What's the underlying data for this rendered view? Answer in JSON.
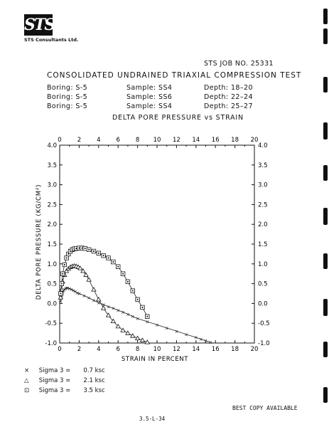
{
  "logo_text": "STS",
  "company": "STS Consultants Ltd.",
  "job": "STS JOB NO. 25331",
  "test_title": "CONSOLIDATED UNDRAINED TRIAXIAL COMPRESSION TEST",
  "samples": [
    {
      "boring": "Boring: S-5",
      "sample": "Sample: SS4",
      "depth": "Depth:  18–20"
    },
    {
      "boring": "Boring: S-5",
      "sample": "Sample: SS6",
      "depth": "Depth:  22–24"
    },
    {
      "boring": "Boring: S-5",
      "sample": "Sample: SS4",
      "depth": "Depth:  25–27"
    }
  ],
  "chart_data": {
    "type": "scatter",
    "title": "DELTA PORE PRESSURE vs STRAIN",
    "xlabel": "STRAIN IN PERCENT",
    "ylabel": "DELTA PORE PRESSURE  (KG/CM²)",
    "xlim": [
      0,
      20
    ],
    "ylim": [
      -1.0,
      4.0
    ],
    "x_ticks": [
      "0",
      "2",
      "4",
      "6",
      "8",
      "10",
      "12",
      "14",
      "16",
      "18",
      "20"
    ],
    "y_ticks": [
      "4.0",
      "3.5",
      "3.0",
      "2.5",
      "2.0",
      "1.5",
      "1.0",
      "0.5",
      "0.0",
      "-0.5",
      "-1.0"
    ],
    "series": [
      {
        "marker": "x",
        "x": [
          0.1,
          0.2,
          0.3,
          0.4,
          0.5,
          0.6,
          0.7,
          0.8,
          1.0,
          1.2,
          1.4,
          1.6,
          1.8,
          2.0,
          2.5,
          3.0,
          3.5,
          4.0,
          4.5,
          5.0,
          5.5,
          6.0,
          6.5,
          7.0,
          7.5,
          8.0,
          9.0,
          10.0,
          11.0,
          12.0,
          13.0,
          14.0,
          14.5,
          15.0,
          15.5
        ],
        "y": [
          0.05,
          0.15,
          0.25,
          0.32,
          0.36,
          0.38,
          0.39,
          0.39,
          0.38,
          0.36,
          0.33,
          0.3,
          0.27,
          0.25,
          0.2,
          0.14,
          0.08,
          0.02,
          -0.03,
          -0.08,
          -0.12,
          -0.17,
          -0.22,
          -0.27,
          -0.33,
          -0.38,
          -0.46,
          -0.54,
          -0.62,
          -0.7,
          -0.78,
          -0.86,
          -0.9,
          -0.94,
          -0.98
        ]
      },
      {
        "marker": "triangle",
        "x": [
          0.1,
          0.2,
          0.3,
          0.5,
          0.7,
          0.9,
          1.1,
          1.3,
          1.5,
          1.7,
          1.9,
          2.1,
          2.4,
          2.7,
          3.0,
          3.5,
          4.0,
          4.5,
          5.0,
          5.5,
          6.0,
          6.5,
          7.0,
          7.5,
          8.0,
          8.5,
          9.0
        ],
        "y": [
          0.15,
          0.35,
          0.55,
          0.72,
          0.82,
          0.88,
          0.92,
          0.94,
          0.95,
          0.94,
          0.92,
          0.89,
          0.82,
          0.72,
          0.6,
          0.35,
          0.1,
          -0.12,
          -0.3,
          -0.45,
          -0.58,
          -0.68,
          -0.75,
          -0.82,
          -0.88,
          -0.93,
          -0.98
        ]
      },
      {
        "marker": "square",
        "x": [
          0.1,
          0.2,
          0.3,
          0.5,
          0.7,
          0.9,
          1.1,
          1.3,
          1.5,
          1.7,
          2.0,
          2.3,
          2.6,
          3.0,
          3.5,
          4.0,
          4.5,
          5.0,
          5.5,
          6.0,
          6.5,
          7.0,
          7.5,
          8.0,
          8.5,
          9.0
        ],
        "y": [
          0.25,
          0.5,
          0.75,
          0.98,
          1.15,
          1.25,
          1.32,
          1.36,
          1.38,
          1.39,
          1.4,
          1.4,
          1.39,
          1.36,
          1.32,
          1.27,
          1.21,
          1.15,
          1.05,
          0.93,
          0.75,
          0.55,
          0.32,
          0.1,
          -0.1,
          -0.33
        ]
      }
    ],
    "legend": [
      {
        "marker": "x",
        "label": "Sigma 3  =",
        "value": "0.7 ksc"
      },
      {
        "marker": "triangle",
        "label": "Sigma 3  =",
        "value": "2.1 ksc"
      },
      {
        "marker": "square",
        "label": "Sigma 3  =",
        "value": "3.5 ksc"
      }
    ]
  },
  "page_number": "3.5-L-34",
  "note": "BEST COPY AVAILABLE"
}
